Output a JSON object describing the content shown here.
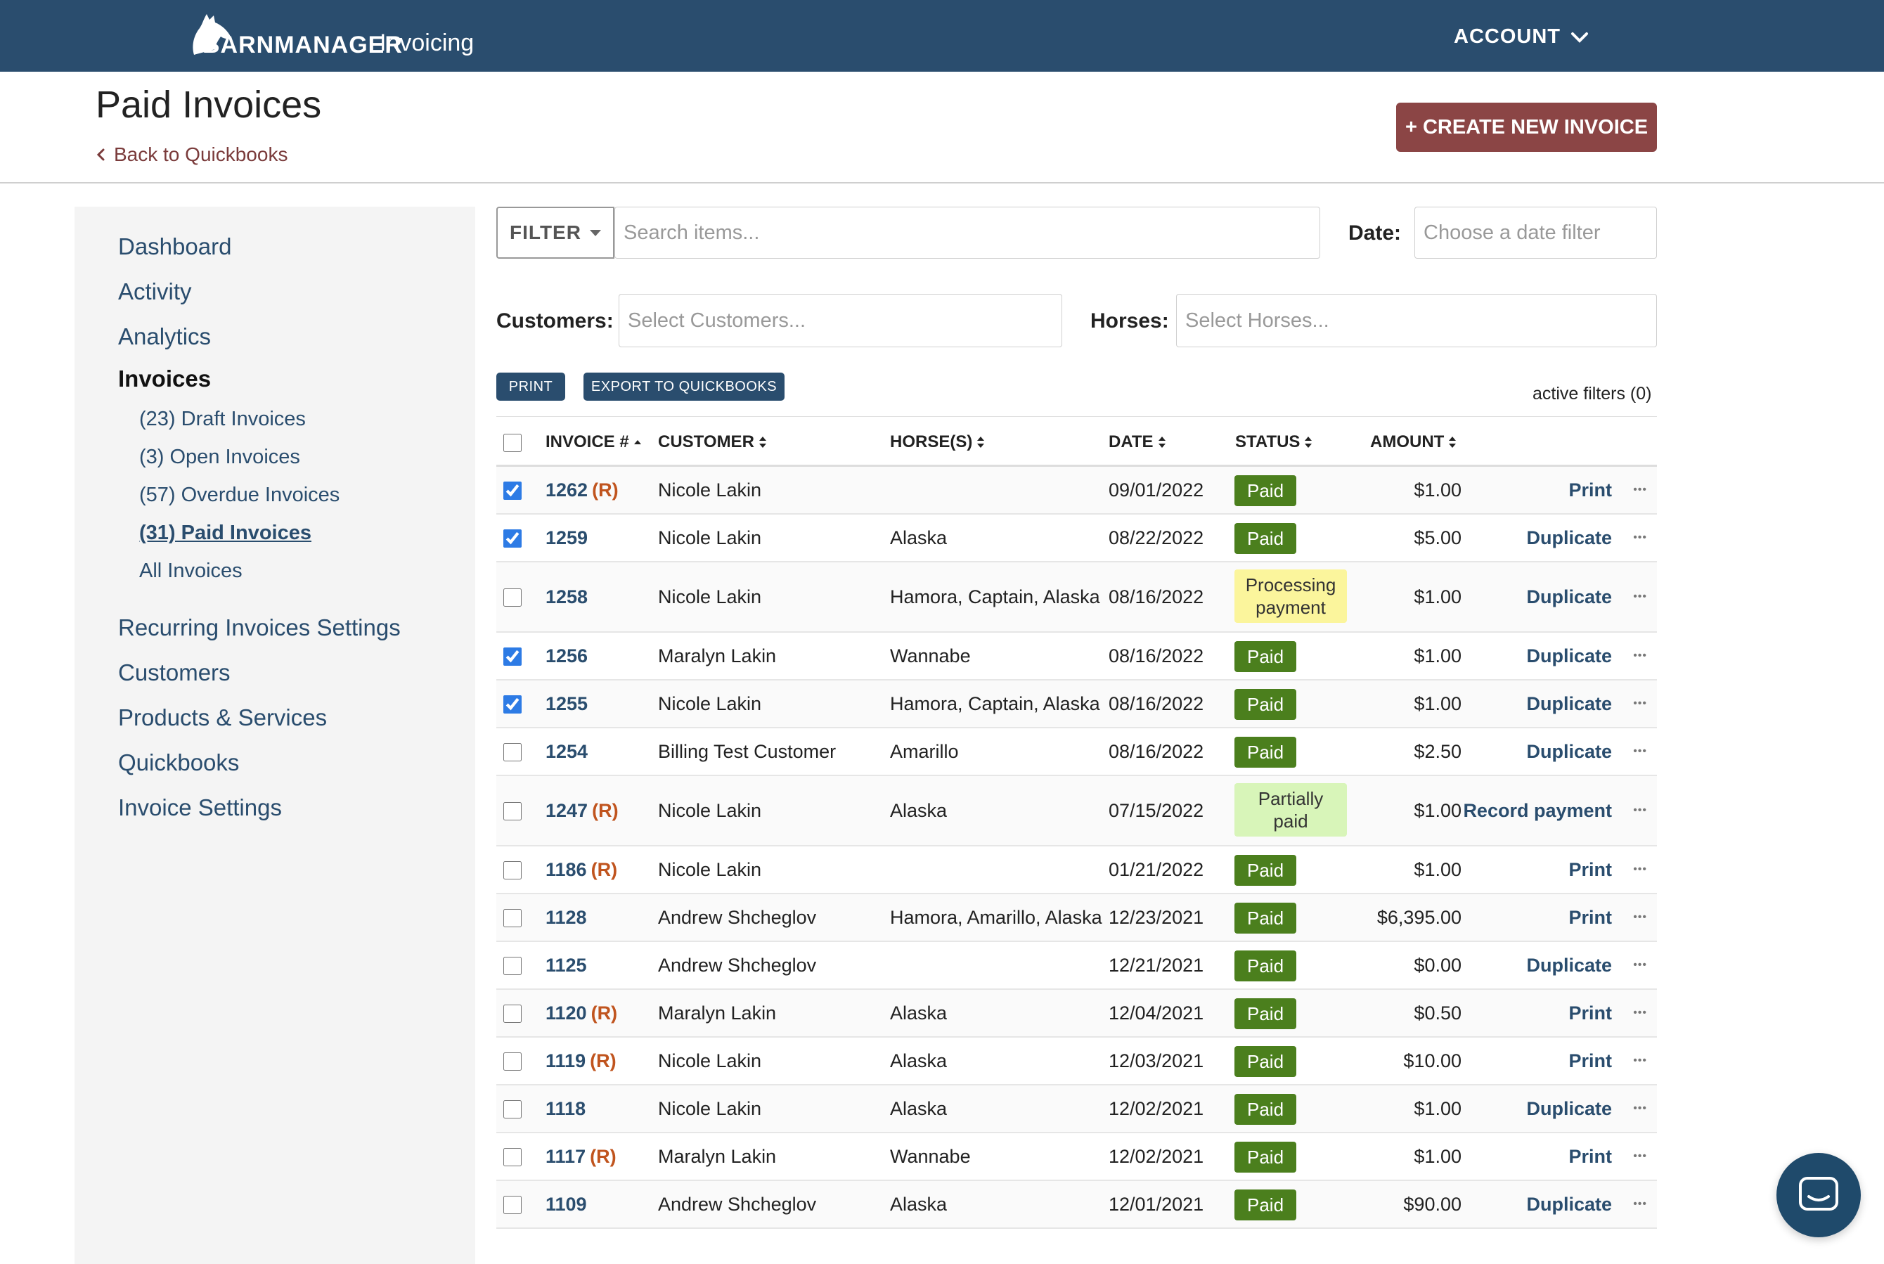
{
  "topbar": {
    "brand": "BARNMANAGER",
    "app_name": "Invoicing",
    "account_label": "ACCOUNT"
  },
  "header": {
    "title": "Paid Invoices",
    "back_link": "Back to Quickbooks",
    "create_button": "+ CREATE NEW INVOICE"
  },
  "sidebar": {
    "items": [
      {
        "label": "Dashboard"
      },
      {
        "label": "Activity"
      },
      {
        "label": "Analytics"
      },
      {
        "label": "Invoices"
      },
      {
        "label": "Recurring Invoices Settings"
      },
      {
        "label": "Customers"
      },
      {
        "label": "Products & Services"
      },
      {
        "label": "Quickbooks"
      },
      {
        "label": "Invoice Settings"
      }
    ],
    "sub_items": [
      {
        "label": "(23) Draft Invoices"
      },
      {
        "label": "(3) Open Invoices"
      },
      {
        "label": "(57) Overdue Invoices"
      },
      {
        "label": "(31) Paid Invoices"
      },
      {
        "label": "All Invoices"
      }
    ]
  },
  "filters": {
    "filter_button": "FILTER",
    "search_placeholder": "Search items...",
    "date_label": "Date:",
    "date_placeholder": "Choose a date filter",
    "customers_label": "Customers:",
    "customers_placeholder": "Select Customers...",
    "horses_label": "Horses:",
    "horses_placeholder": "Select Horses..."
  },
  "actions": {
    "print": "PRINT",
    "export": "EXPORT TO QUICKBOOKS",
    "active_filters": "active filters (0)"
  },
  "table": {
    "headers": {
      "invoice": "INVOICE #",
      "customer": "CUSTOMER",
      "horses": "HORSE(S)",
      "date": "DATE",
      "status": "STATUS",
      "amount": "AMOUNT"
    },
    "rows": [
      {
        "checked": true,
        "invoice": "1262",
        "recurring": "(R)",
        "customer": "Nicole Lakin",
        "horses": "",
        "date": "09/01/2022",
        "status": "Paid",
        "status_type": "paid",
        "amount": "$1.00",
        "action": "Print"
      },
      {
        "checked": true,
        "invoice": "1259",
        "recurring": "",
        "customer": "Nicole Lakin",
        "horses": "Alaska",
        "date": "08/22/2022",
        "status": "Paid",
        "status_type": "paid",
        "amount": "$5.00",
        "action": "Duplicate"
      },
      {
        "checked": false,
        "invoice": "1258",
        "recurring": "",
        "customer": "Nicole Lakin",
        "horses": "Hamora, Captain, Alaska",
        "date": "08/16/2022",
        "status": "Processing payment",
        "status_type": "processing",
        "amount": "$1.00",
        "action": "Duplicate"
      },
      {
        "checked": true,
        "invoice": "1256",
        "recurring": "",
        "customer": "Maralyn Lakin",
        "horses": "Wannabe",
        "date": "08/16/2022",
        "status": "Paid",
        "status_type": "paid",
        "amount": "$1.00",
        "action": "Duplicate"
      },
      {
        "checked": true,
        "invoice": "1255",
        "recurring": "",
        "customer": "Nicole Lakin",
        "horses": "Hamora, Captain, Alaska",
        "date": "08/16/2022",
        "status": "Paid",
        "status_type": "paid",
        "amount": "$1.00",
        "action": "Duplicate"
      },
      {
        "checked": false,
        "invoice": "1254",
        "recurring": "",
        "customer": "Billing Test Customer",
        "horses": "Amarillo",
        "date": "08/16/2022",
        "status": "Paid",
        "status_type": "paid",
        "amount": "$2.50",
        "action": "Duplicate"
      },
      {
        "checked": false,
        "invoice": "1247",
        "recurring": "(R)",
        "customer": "Nicole Lakin",
        "horses": "Alaska",
        "date": "07/15/2022",
        "status": "Partially paid",
        "status_type": "partial",
        "amount": "$1.00",
        "action": "Record payment"
      },
      {
        "checked": false,
        "invoice": "1186",
        "recurring": "(R)",
        "customer": "Nicole Lakin",
        "horses": "",
        "date": "01/21/2022",
        "status": "Paid",
        "status_type": "paid",
        "amount": "$1.00",
        "action": "Print"
      },
      {
        "checked": false,
        "invoice": "1128",
        "recurring": "",
        "customer": "Andrew Shcheglov",
        "horses": "Hamora, Amarillo, Alaska",
        "date": "12/23/2021",
        "status": "Paid",
        "status_type": "paid",
        "amount": "$6,395.00",
        "action": "Print"
      },
      {
        "checked": false,
        "invoice": "1125",
        "recurring": "",
        "customer": "Andrew Shcheglov",
        "horses": "",
        "date": "12/21/2021",
        "status": "Paid",
        "status_type": "paid",
        "amount": "$0.00",
        "action": "Duplicate"
      },
      {
        "checked": false,
        "invoice": "1120",
        "recurring": "(R)",
        "customer": "Maralyn Lakin",
        "horses": "Alaska",
        "date": "12/04/2021",
        "status": "Paid",
        "status_type": "paid",
        "amount": "$0.50",
        "action": "Print"
      },
      {
        "checked": false,
        "invoice": "1119",
        "recurring": "(R)",
        "customer": "Nicole Lakin",
        "horses": "Alaska",
        "date": "12/03/2021",
        "status": "Paid",
        "status_type": "paid",
        "amount": "$10.00",
        "action": "Print"
      },
      {
        "checked": false,
        "invoice": "1118",
        "recurring": "",
        "customer": "Nicole Lakin",
        "horses": "Alaska",
        "date": "12/02/2021",
        "status": "Paid",
        "status_type": "paid",
        "amount": "$1.00",
        "action": "Duplicate"
      },
      {
        "checked": false,
        "invoice": "1117",
        "recurring": "(R)",
        "customer": "Maralyn Lakin",
        "horses": "Wannabe",
        "date": "12/02/2021",
        "status": "Paid",
        "status_type": "paid",
        "amount": "$1.00",
        "action": "Print"
      },
      {
        "checked": false,
        "invoice": "1109",
        "recurring": "",
        "customer": "Andrew Shcheglov",
        "horses": "Alaska",
        "date": "12/01/2021",
        "status": "Paid",
        "status_type": "paid",
        "amount": "$90.00",
        "action": "Duplicate"
      }
    ]
  },
  "colors": {
    "topbar": "#2a4d6e",
    "create_button": "#8b4545",
    "paid": "#4b7f1d",
    "processing": "#fbf59c",
    "partial": "#d8f5b9",
    "recurring_tag": "#c0541e"
  },
  "icons": {
    "logo": "horse-head-icon",
    "account": "chevron-down-icon",
    "back": "chevron-left-icon",
    "sort": "sort-icon",
    "more": "ellipsis-icon",
    "chat": "chat-icon"
  }
}
